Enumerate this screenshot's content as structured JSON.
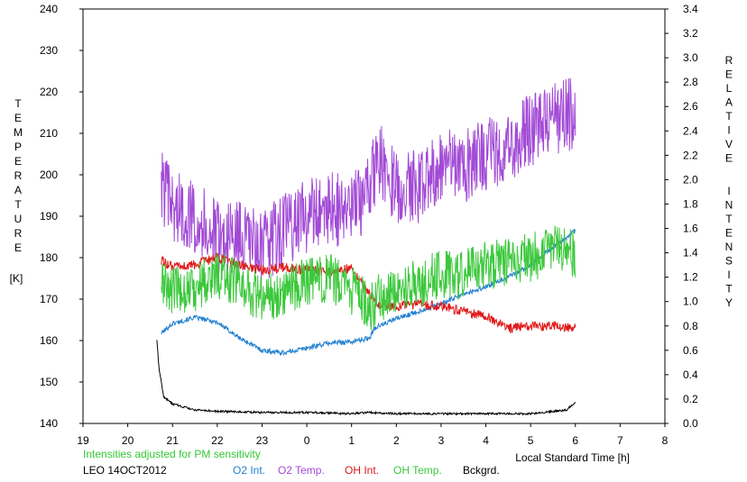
{
  "chart_data": {
    "type": "line",
    "left_axis": {
      "label_letters": [
        "T",
        "E",
        "M",
        "P",
        "E",
        "R",
        "A",
        "T",
        "U",
        "R",
        "E"
      ],
      "unit": "[K]",
      "ylim": [
        140,
        240
      ],
      "ticks": [
        "140",
        "150",
        "160",
        "170",
        "180",
        "190",
        "200",
        "210",
        "220",
        "230",
        "240"
      ]
    },
    "right_axis": {
      "label_word1": [
        "R",
        "E",
        "L",
        "A",
        "T",
        "I",
        "V",
        "E"
      ],
      "label_word2": [
        "I",
        "N",
        "T",
        "E",
        "N",
        "S",
        "I",
        "T",
        "Y"
      ],
      "ylim": [
        0.0,
        3.4
      ],
      "ticks": [
        "0.0",
        "0.2",
        "0.4",
        "0.6",
        "0.8",
        "1.0",
        "1.2",
        "1.4",
        "1.6",
        "1.8",
        "2.0",
        "2.2",
        "2.4",
        "2.6",
        "2.8",
        "3.0",
        "3.2",
        "3.4"
      ]
    },
    "x_axis": {
      "label": "Local Standard Time [h]",
      "xlim": [
        19,
        32
      ],
      "ticks": [
        "19",
        "20",
        "21",
        "22",
        "23",
        "0",
        "1",
        "2",
        "3",
        "4",
        "5",
        "6",
        "7",
        "8"
      ]
    },
    "note": "Intensities adjusted for PM sensitivity",
    "station": "LEO 14OCT2012",
    "series": [
      {
        "name": "O2 Int.",
        "axis": "right",
        "color": "#1f7fd0",
        "x": [
          20.75,
          21.0,
          21.5,
          22.0,
          22.5,
          23.0,
          23.5,
          24.0,
          24.5,
          25.0,
          25.4,
          25.5,
          26.0,
          26.5,
          27.0,
          27.5,
          28.0,
          28.5,
          29.0,
          29.5,
          30.0
        ],
        "y": [
          0.74,
          0.82,
          0.87,
          0.83,
          0.7,
          0.6,
          0.58,
          0.62,
          0.66,
          0.67,
          0.7,
          0.78,
          0.86,
          0.92,
          0.98,
          1.06,
          1.12,
          1.2,
          1.3,
          1.45,
          1.58
        ]
      },
      {
        "name": "O2 Temp.",
        "axis": "left",
        "color": "#a24ad6",
        "x": [
          20.75,
          21.0,
          21.5,
          22.0,
          22.5,
          23.0,
          23.5,
          24.0,
          24.5,
          25.0,
          25.4,
          25.6,
          26.0,
          26.5,
          27.0,
          27.5,
          28.0,
          28.5,
          29.0,
          29.5,
          30.0
        ],
        "y": [
          198,
          192,
          190,
          185,
          185,
          182,
          187,
          190,
          192,
          191,
          197,
          204,
          197,
          197,
          203,
          202,
          205,
          207,
          211,
          213,
          215
        ]
      },
      {
        "name": "OH Int.",
        "axis": "right",
        "color": "#e01818",
        "x": [
          20.75,
          21.0,
          21.5,
          22.0,
          22.5,
          23.0,
          23.5,
          24.0,
          24.5,
          25.0,
          25.4,
          25.6,
          26.0,
          26.5,
          27.0,
          27.5,
          28.0,
          28.5,
          29.0,
          29.5,
          30.0
        ],
        "y": [
          1.34,
          1.28,
          1.3,
          1.36,
          1.3,
          1.26,
          1.28,
          1.26,
          1.24,
          1.28,
          1.06,
          0.98,
          0.96,
          0.98,
          0.96,
          0.92,
          0.88,
          0.78,
          0.8,
          0.8,
          0.78
        ]
      },
      {
        "name": "OH Temp.",
        "axis": "left",
        "color": "#3cc83c",
        "x": [
          20.75,
          21.0,
          21.5,
          22.0,
          22.5,
          23.0,
          23.5,
          24.0,
          24.5,
          25.0,
          25.4,
          25.6,
          26.0,
          26.5,
          27.0,
          27.5,
          28.0,
          28.5,
          29.0,
          29.5,
          30.0
        ],
        "y": [
          174,
          172,
          173,
          176,
          174,
          170,
          172,
          174,
          175,
          172,
          168,
          170,
          173,
          174,
          176,
          176,
          178,
          179,
          180,
          182,
          181
        ]
      },
      {
        "name": "Bckgrd.",
        "axis": "right",
        "color": "#000000",
        "x": [
          20.65,
          20.7,
          20.8,
          21.0,
          21.5,
          22.0,
          23.0,
          24.0,
          25.0,
          25.4,
          26.0,
          27.0,
          28.0,
          29.0,
          29.8,
          30.0
        ],
        "y": [
          0.68,
          0.45,
          0.22,
          0.16,
          0.11,
          0.1,
          0.09,
          0.09,
          0.08,
          0.09,
          0.08,
          0.08,
          0.08,
          0.08,
          0.11,
          0.17
        ]
      }
    ]
  }
}
